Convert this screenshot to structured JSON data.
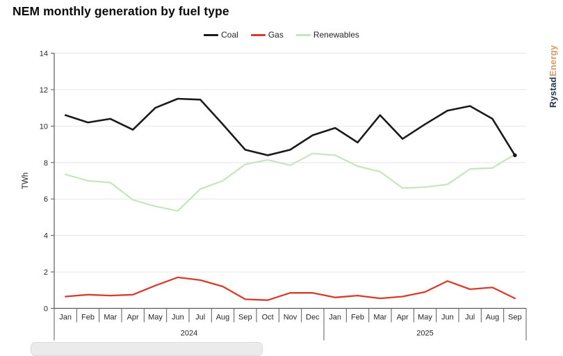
{
  "title": "NEM monthly generation by fuel type",
  "brand": {
    "name_part_1": "Rystad",
    "name_part_2": "Energy",
    "color_part_1": "#253551",
    "color_part_2": "#dd9a62"
  },
  "chart_data": {
    "type": "line",
    "title": "NEM monthly generation by fuel type",
    "ylabel": "TWh",
    "ylim": [
      0,
      14
    ],
    "ytick_step": 2,
    "grid": true,
    "legend_position": "top-center",
    "categories": [
      "Jan",
      "Feb",
      "Mar",
      "Apr",
      "May",
      "Jun",
      "Jul",
      "Aug",
      "Sep",
      "Oct",
      "Nov",
      "Dec",
      "Jan",
      "Feb",
      "Mar",
      "Apr",
      "May",
      "Jun",
      "Jul",
      "Aug",
      "Sep"
    ],
    "year_groups": [
      {
        "label": "2024",
        "months": 12
      },
      {
        "label": "2025",
        "months": 9
      }
    ],
    "series": [
      {
        "name": "Coal",
        "color": "#1a1a1a",
        "line_width": 2.6,
        "end_marker": true,
        "values": [
          10.6,
          10.2,
          10.4,
          9.8,
          11.0,
          11.5,
          11.45,
          10.1,
          8.7,
          8.4,
          8.7,
          9.5,
          9.9,
          9.1,
          10.6,
          9.3,
          10.1,
          10.85,
          11.1,
          10.4,
          8.4
        ]
      },
      {
        "name": "Gas",
        "color": "#d93b2b",
        "line_width": 2.3,
        "end_marker": false,
        "values": [
          0.65,
          0.75,
          0.7,
          0.75,
          1.25,
          1.7,
          1.55,
          1.2,
          0.5,
          0.45,
          0.85,
          0.85,
          0.6,
          0.7,
          0.55,
          0.65,
          0.9,
          1.5,
          1.05,
          1.15,
          0.55
        ]
      },
      {
        "name": "Renewables",
        "color": "#c5e6bd",
        "line_width": 2.2,
        "end_marker": false,
        "values": [
          7.35,
          7.0,
          6.9,
          5.95,
          5.6,
          5.35,
          6.55,
          7.0,
          7.9,
          8.15,
          7.85,
          8.5,
          8.4,
          7.8,
          7.5,
          6.6,
          6.65,
          6.8,
          7.65,
          7.7,
          8.45
        ]
      }
    ]
  }
}
